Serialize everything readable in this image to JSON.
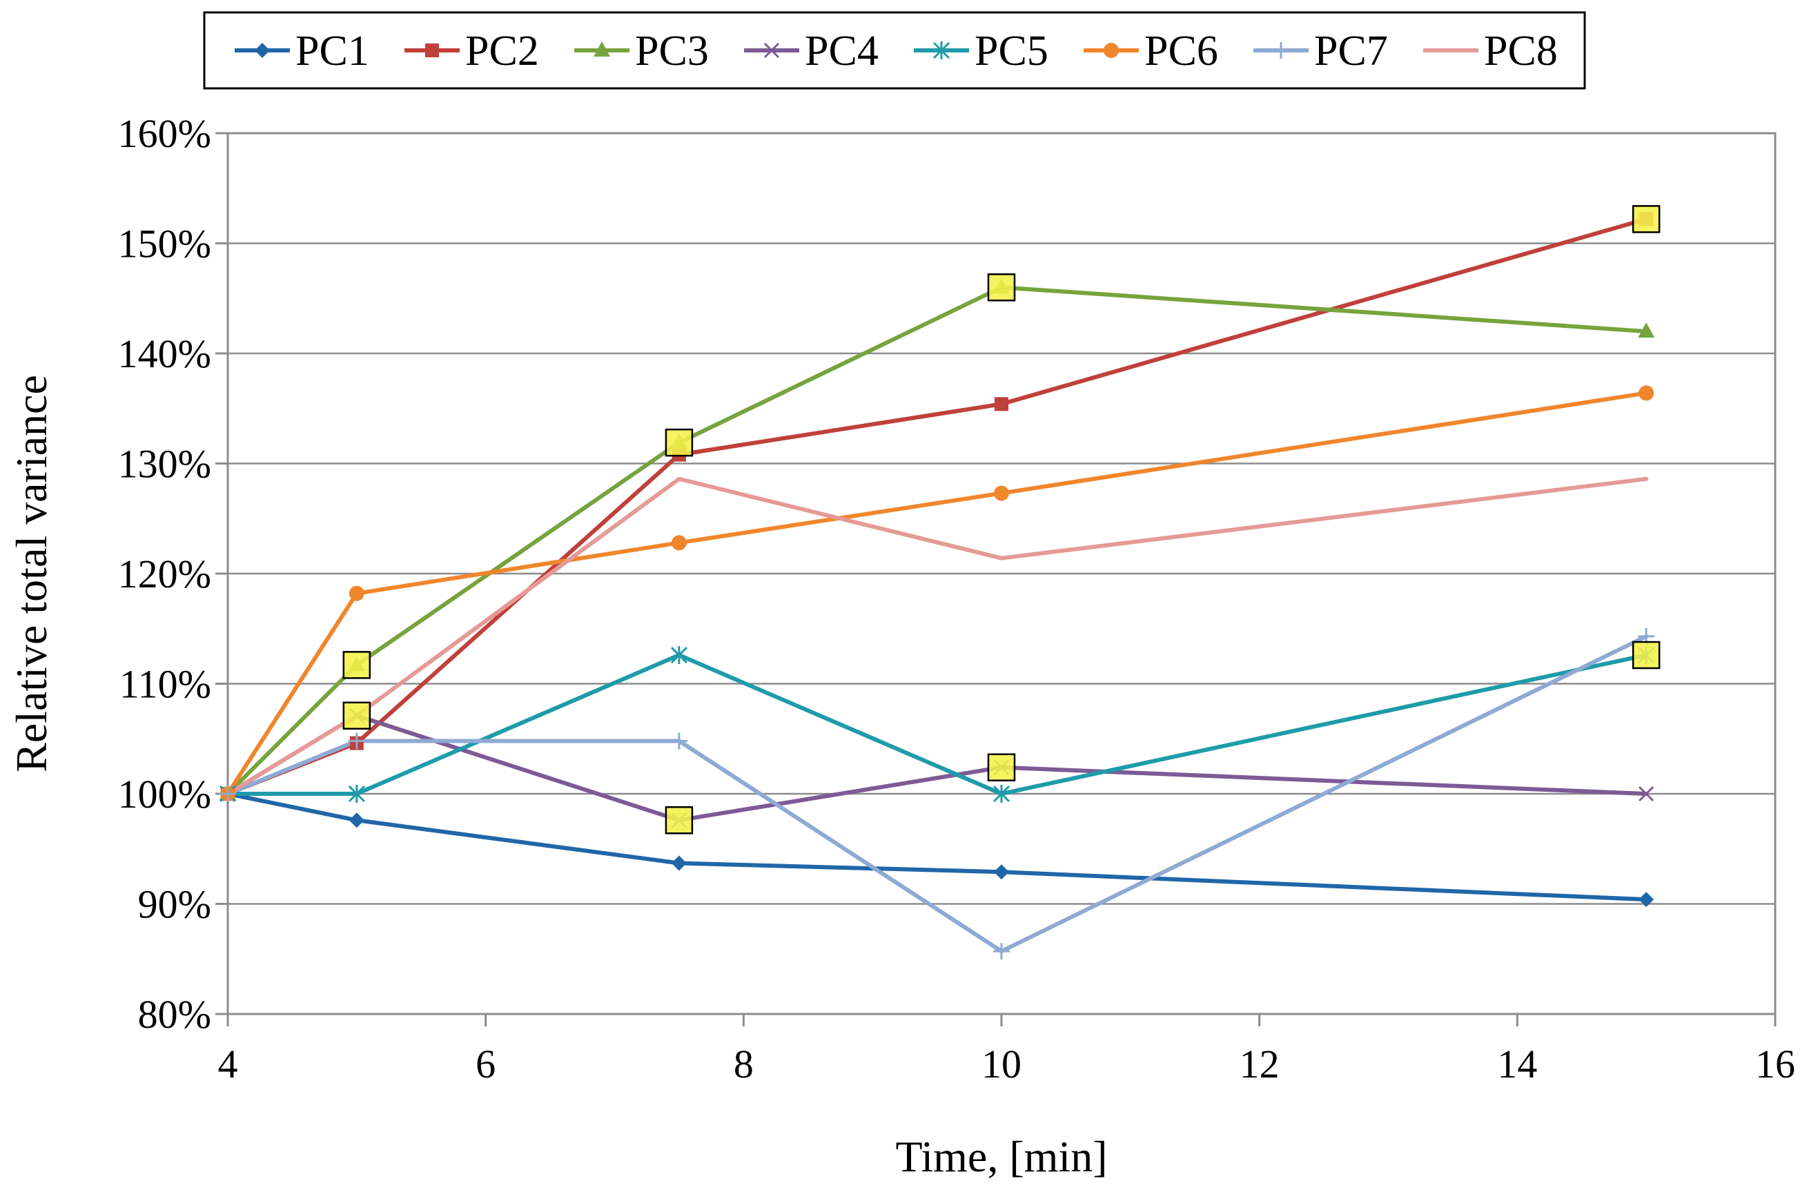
{
  "chart_data": {
    "type": "line",
    "title": "",
    "xlabel": "Time, [min]",
    "ylabel": "Relative total variance",
    "xlim": [
      4,
      16
    ],
    "ylim": [
      80,
      160
    ],
    "x_ticks": [
      4,
      6,
      8,
      10,
      12,
      14,
      16
    ],
    "y_ticks": [
      80,
      90,
      100,
      110,
      120,
      130,
      140,
      150,
      160
    ],
    "y_tick_format": "percent",
    "grid": "horizontal",
    "legend_position": "top",
    "x": [
      4,
      5,
      7.5,
      10,
      15
    ],
    "series": [
      {
        "name": "PC1",
        "color": "#2066A8",
        "marker": "diamond",
        "values": [
          100,
          97.6,
          93.7,
          92.9,
          90.4
        ]
      },
      {
        "name": "PC2",
        "color": "#C0403A",
        "marker": "square",
        "values": [
          100,
          104.6,
          130.8,
          135.4,
          152.2
        ]
      },
      {
        "name": "PC3",
        "color": "#77A33E",
        "marker": "triangle",
        "values": [
          100,
          111.7,
          131.9,
          146.0,
          142.0
        ]
      },
      {
        "name": "PC4",
        "color": "#7D5A96",
        "marker": "x",
        "values": [
          100,
          107.1,
          97.6,
          102.4,
          100.0
        ]
      },
      {
        "name": "PC5",
        "color": "#1F9BAA",
        "marker": "asterisk",
        "values": [
          100,
          100.0,
          112.6,
          100.0,
          112.6
        ]
      },
      {
        "name": "PC6",
        "color": "#F0862C",
        "marker": "circle",
        "values": [
          100,
          118.2,
          122.8,
          127.3,
          136.4
        ]
      },
      {
        "name": "PC7",
        "color": "#8EAAD4",
        "marker": "plus",
        "values": [
          100,
          104.8,
          104.8,
          85.7,
          114.3
        ]
      },
      {
        "name": "PC8",
        "color": "#E59A97",
        "marker": "none",
        "values": [
          100,
          107.1,
          128.6,
          121.4,
          128.6
        ]
      }
    ],
    "highlight_markers": [
      {
        "series": "PC2",
        "x": 15,
        "y": 152.2
      },
      {
        "series": "PC3",
        "x": 5,
        "y": 111.7
      },
      {
        "series": "PC3",
        "x": 7.5,
        "y": 131.9
      },
      {
        "series": "PC3",
        "x": 10,
        "y": 146.0
      },
      {
        "series": "PC4",
        "x": 5,
        "y": 107.1
      },
      {
        "series": "PC4",
        "x": 7.5,
        "y": 97.6
      },
      {
        "series": "PC4",
        "x": 10,
        "y": 102.4
      },
      {
        "series": "PC5",
        "x": 15,
        "y": 112.6
      }
    ],
    "highlight_style": {
      "fill": "#F4F14A",
      "stroke": "#000000"
    }
  }
}
